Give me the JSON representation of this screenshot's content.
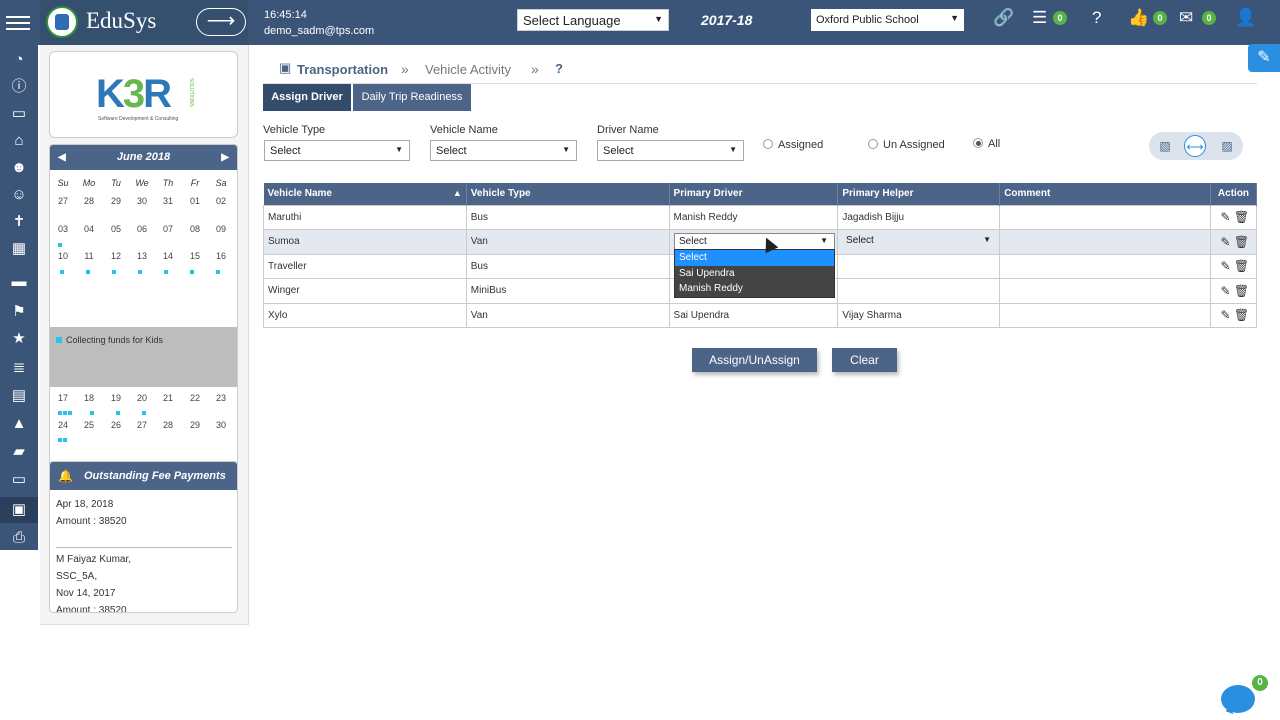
{
  "header": {
    "app_name": "EduSys",
    "time": "16:45:14",
    "user": "demo_sadm@tps.com",
    "language_select": "Select Language",
    "year": "2017-18",
    "school": "Oxford Public School",
    "badges": {
      "list": "0",
      "likes": "0",
      "mail": "0"
    }
  },
  "sidebar": {
    "brand": {
      "logo_k": "K",
      "logo_b": "3",
      "logo_r": "R",
      "tagline": "Software Development & Consulting",
      "solutions": "SOLUTIONS"
    },
    "calendar": {
      "month": "June 2018",
      "days": [
        "Su",
        "Mo",
        "Tu",
        "We",
        "Th",
        "Fr",
        "Sa"
      ],
      "weeks": [
        [
          "27",
          "28",
          "29",
          "30",
          "31",
          "01",
          "02"
        ],
        [
          "03",
          "04",
          "05",
          "06",
          "07",
          "08",
          "09"
        ],
        [
          "10",
          "11",
          "12",
          "13",
          "14",
          "15",
          "16"
        ],
        [
          "17",
          "18",
          "19",
          "20",
          "21",
          "22",
          "23"
        ],
        [
          "24",
          "25",
          "26",
          "27",
          "28",
          "29",
          "30"
        ]
      ],
      "event": "Collecting funds for Kids"
    },
    "fees": {
      "title": "Outstanding Fee Payments",
      "lines": [
        "Apr 18, 2018",
        "Amount : 38520",
        "M Faiyaz Kumar,",
        "SSC_5A,",
        "Nov 14, 2017",
        "Amount : 38520"
      ]
    }
  },
  "breadcrumb": {
    "section": "Transportation",
    "page": "Vehicle Activity",
    "sep": "»",
    "help": "?"
  },
  "tabs": [
    "Assign Driver",
    "Daily Trip Readiness"
  ],
  "filters": {
    "vehicle_type": {
      "label": "Vehicle Type",
      "value": "Select"
    },
    "vehicle_name": {
      "label": "Vehicle Name",
      "value": "Select"
    },
    "driver_name": {
      "label": "Driver Name",
      "value": "Select"
    },
    "radios": [
      "Assigned",
      "Un Assigned",
      "All"
    ],
    "radio_selected": "All"
  },
  "table": {
    "columns": [
      "Vehicle Name",
      "Vehicle Type",
      "Primary Driver",
      "Primary Helper",
      "Comment",
      "Action"
    ],
    "rows": [
      {
        "vehicle": "Maruthi",
        "type": "Bus",
        "driver": "Manish Reddy",
        "helper": "Jagadish Bijju",
        "comment": ""
      },
      {
        "vehicle": "Sumoa",
        "type": "Van",
        "driver": "Select",
        "helper": "Select",
        "comment": ""
      },
      {
        "vehicle": "Traveller",
        "type": "Bus",
        "driver": "",
        "helper": "",
        "comment": ""
      },
      {
        "vehicle": "Winger",
        "type": "MiniBus",
        "driver": "",
        "helper": "",
        "comment": ""
      },
      {
        "vehicle": "Xylo",
        "type": "Van",
        "driver": "Sai Upendra",
        "helper": "Vijay Sharma",
        "comment": ""
      }
    ]
  },
  "dropdown": {
    "options": [
      "Select",
      "Sai Upendra",
      "Manish Reddy"
    ],
    "highlighted": "Select"
  },
  "buttons": {
    "assign": "Assign/UnAssign",
    "clear": "Clear"
  },
  "chat": {
    "badge": "0"
  }
}
